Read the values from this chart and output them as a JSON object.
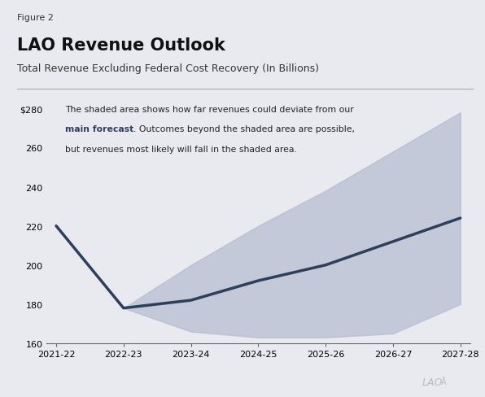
{
  "figure_label": "Figure 2",
  "title": "LAO Revenue Outlook",
  "subtitle": "Total Revenue Excluding Federal Cost Recovery (In Billions)",
  "x_labels": [
    "2021-22",
    "2022-23",
    "2023-24",
    "2024-25",
    "2025-26",
    "2026-27",
    "2027-28"
  ],
  "main_forecast": [
    220,
    178,
    182,
    192,
    200,
    212,
    224
  ],
  "upper_band": [
    220,
    178,
    200,
    220,
    238,
    258,
    278
  ],
  "lower_band": [
    220,
    178,
    166,
    163,
    163,
    165,
    180
  ],
  "ylim": [
    160,
    285
  ],
  "yticks": [
    160,
    180,
    200,
    220,
    240,
    260,
    280
  ],
  "ytick_labels": [
    "160",
    "180",
    "200",
    "220",
    "240",
    "260",
    "$280"
  ],
  "line_color": "#2e3f5c",
  "band_color": "#b0b8cc",
  "band_alpha": 0.65,
  "bg_color": "#e8eaf0",
  "annotation_line1": "The shaded area shows how far revenues could deviate from our",
  "annotation_bold": "main forecast",
  "annotation_line2_suffix": ". Outcomes beyond the shaded area are possible,",
  "annotation_line3": "but revenues most likely will fall in the shaded area.",
  "annotation_bold_color": "#2e3f5c",
  "lao_color": "#bbbbbb",
  "line_width": 2.5,
  "fig_width": 5.96,
  "fig_height": 4.89,
  "dpi": 100
}
